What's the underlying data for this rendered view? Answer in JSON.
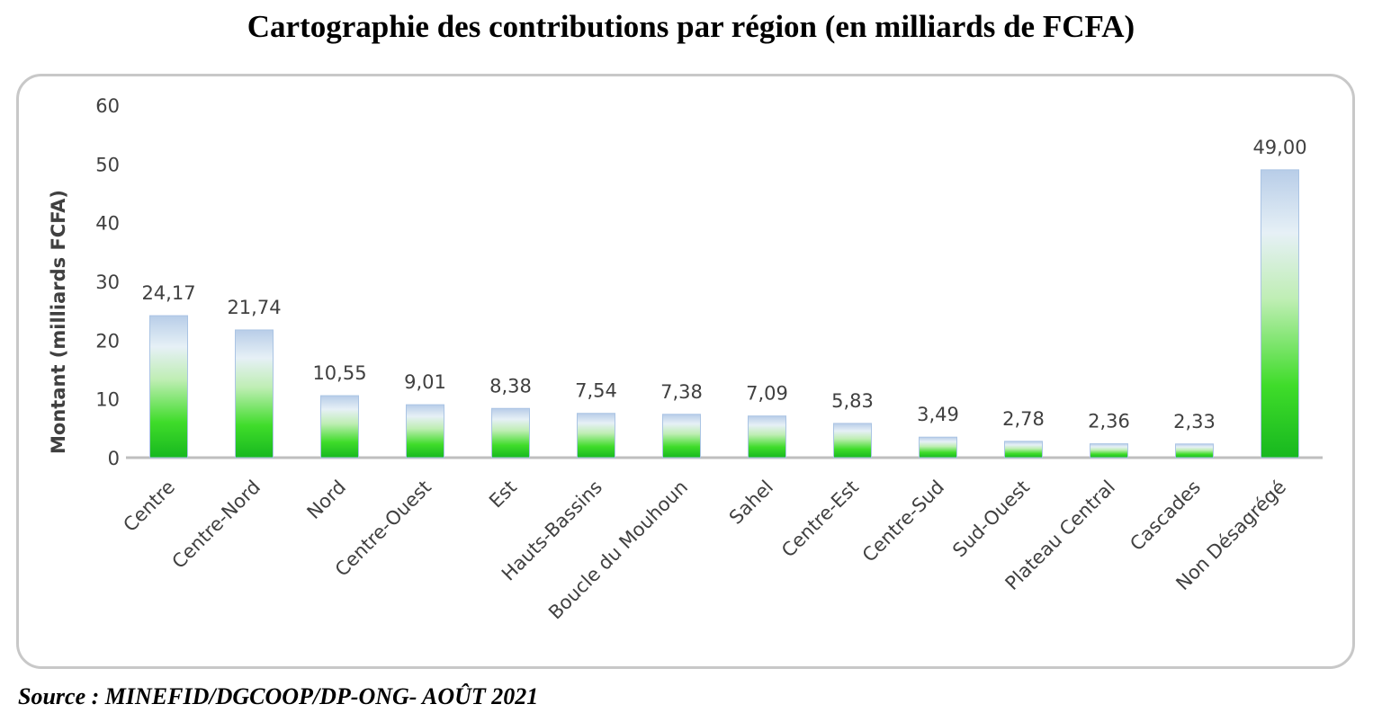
{
  "chart_data": {
    "type": "bar",
    "title": "Cartographie des contributions par région (en milliards de FCFA)",
    "ylabel": "Montant (milliards FCFA)",
    "xlabel": "",
    "ylim": [
      0,
      60
    ],
    "yticks": [
      0,
      10,
      20,
      30,
      40,
      50,
      60
    ],
    "categories": [
      "Centre",
      "Centre-Nord",
      "Nord",
      "Centre-Ouest",
      "Est",
      "Hauts-Bassins",
      "Boucle du Mouhoun",
      "Sahel",
      "Centre-Est",
      "Centre-Sud",
      "Sud-Ouest",
      "Plateau Central",
      "Cascades",
      "Non Désagrégé"
    ],
    "values": [
      24.17,
      21.74,
      10.55,
      9.01,
      8.38,
      7.54,
      7.38,
      7.09,
      5.83,
      3.49,
      2.78,
      2.36,
      2.33,
      49.0
    ],
    "value_labels": [
      "24,17",
      "21,74",
      "10,55",
      "9,01",
      "8,38",
      "7,54",
      "7,38",
      "7,09",
      "5,83",
      "3,49",
      "2,78",
      "2,36",
      "2,33",
      "49,00"
    ],
    "grid": false,
    "colors": {
      "bar_top": "#b8cde8",
      "bar_mid": "#d8f0d0",
      "bar_bottom": "#1ec81e",
      "axis": "#bfbfbf"
    }
  },
  "source": "Source : MINEFID/DGCOOP/DP-ONG- AOÛT 2021"
}
